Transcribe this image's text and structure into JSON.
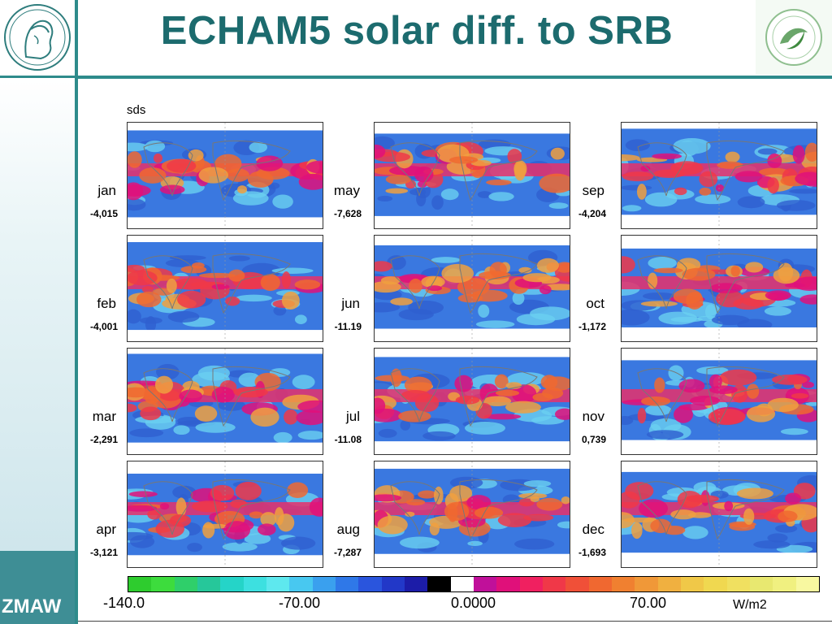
{
  "slide": {
    "title": "ECHAM5 solar diff. to SRB",
    "footer_logo": "ZMAW"
  },
  "chart_data": {
    "type": "heatmap",
    "variable_label": "sds",
    "panels": [
      {
        "month": "jan",
        "value": "-4,015"
      },
      {
        "month": "feb",
        "value": "-4,001"
      },
      {
        "month": "mar",
        "value": "-2,291"
      },
      {
        "month": "apr",
        "value": "-3,121"
      },
      {
        "month": "may",
        "value": "-7,628"
      },
      {
        "month": "jun",
        "value": "-11.19"
      },
      {
        "month": "jul",
        "value": "-11.08"
      },
      {
        "month": "aug",
        "value": "-7,287"
      },
      {
        "month": "sep",
        "value": "-4,204"
      },
      {
        "month": "oct",
        "value": "-1,172"
      },
      {
        "month": "nov",
        "value": "0,739"
      },
      {
        "month": "dec",
        "value": "-1,693"
      }
    ],
    "colorbar": {
      "range": [
        -140,
        140
      ],
      "ticks": [
        "-140.0",
        "-70.00",
        "0.0000",
        "70.00"
      ],
      "unit": "W/m2",
      "colors": [
        "#2ecc2e",
        "#3ddc3d",
        "#2fcf6a",
        "#26c79a",
        "#25d4c8",
        "#3de0e0",
        "#5ee8ee",
        "#48c8f0",
        "#3aa0ee",
        "#2f78e8",
        "#2a55dd",
        "#2238c8",
        "#1c1ca8",
        "#000000",
        "#ffffff",
        "#c0109a",
        "#e0107a",
        "#f02060",
        "#f03848",
        "#f05038",
        "#f06830",
        "#f08030",
        "#f09838",
        "#f0b040",
        "#f0c848",
        "#f0d850",
        "#f0e060",
        "#e8e870",
        "#f0f080",
        "#f8f8a0"
      ]
    }
  }
}
